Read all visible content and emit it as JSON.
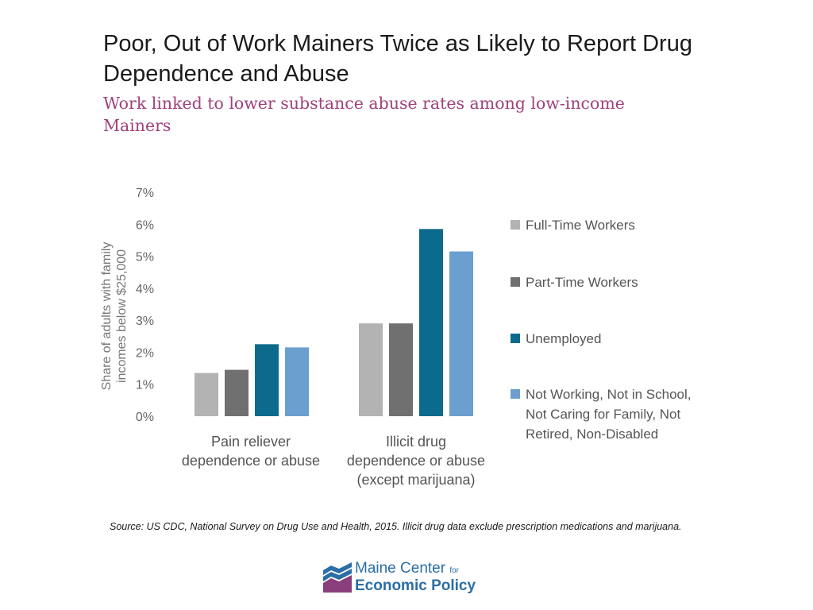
{
  "header": {
    "title": "Poor, Out of Work Mainers Twice as Likely to Report Drug Dependence and Abuse",
    "subtitle": "Work linked to lower substance abuse rates among low-income Mainers"
  },
  "chart_data": {
    "type": "bar",
    "title": "Poor, Out of Work Mainers Twice as Likely to Report Drug Dependence and Abuse",
    "subtitle": "Work linked to lower substance abuse rates among low-income Mainers",
    "categories": [
      [
        "Pain reliever",
        "dependence or abuse"
      ],
      [
        "Illicit drug",
        "dependence or abuse",
        "(except marijuana)"
      ]
    ],
    "ylabel": [
      "Share of  adults with family",
      "incomes below $25,000"
    ],
    "ylim": [
      0,
      7
    ],
    "yticks": [
      "0%",
      "1%",
      "2%",
      "3%",
      "4%",
      "5%",
      "6%",
      "7%"
    ],
    "grid": false,
    "legend_position": "right",
    "series": [
      {
        "name": "Full-Time Workers",
        "color": "#b3b3b3",
        "values": [
          1.35,
          2.9
        ]
      },
      {
        "name": "Part-Time Workers",
        "color": "#707070",
        "values": [
          1.45,
          2.9
        ]
      },
      {
        "name": "Unemployed",
        "color": "#0c6a8c",
        "values": [
          2.25,
          5.85
        ]
      },
      {
        "name": "Not Working, Not in School, Not Caring for Family, Not Retired, Non-Disabled",
        "color": "#6b9fcf",
        "values": [
          2.15,
          5.15
        ]
      }
    ]
  },
  "footer": {
    "source": "Source: US CDC, National Survey on Drug Use and Health, 2015. Illicit drug data exclude prescription medications and marijuana.",
    "logo": {
      "line1": "Maine Center",
      "for": "for",
      "line2": "Economic Policy",
      "colors": {
        "blue": "#2b6ea6",
        "purple": "#8a3e7c"
      }
    }
  }
}
